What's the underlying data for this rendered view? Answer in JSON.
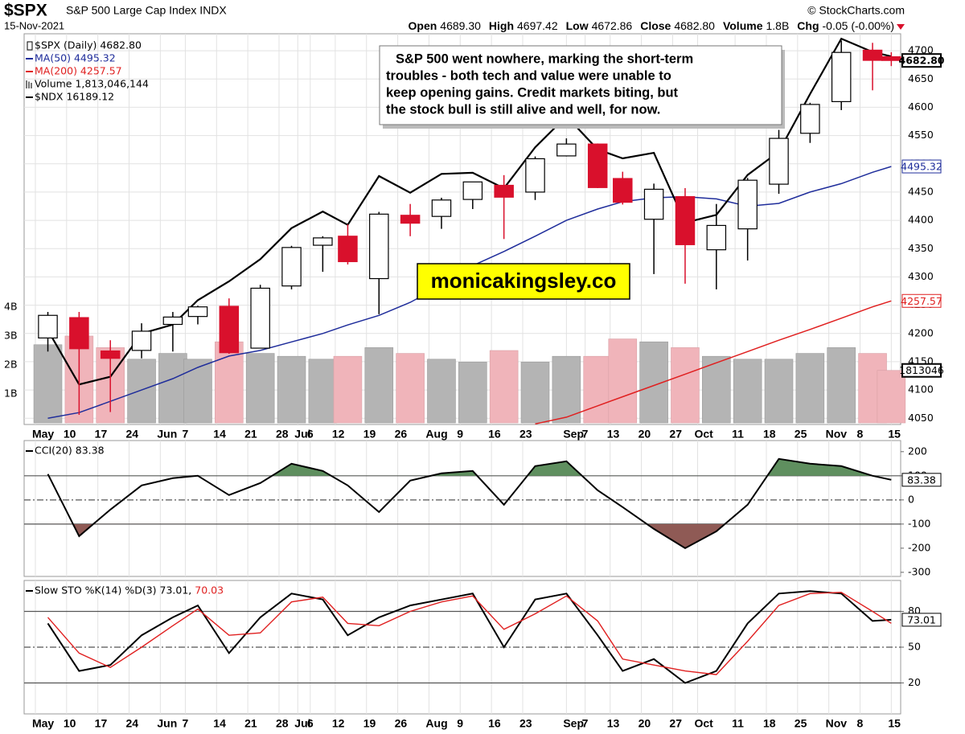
{
  "chart_data": [
    {
      "type": "candlestick",
      "symbol": "$SPX",
      "name": "S&P 500 Large Cap Index INDX",
      "date": "15-Nov-2021",
      "source": "© StockCharts.com",
      "quote": [
        {
          "label": "Open",
          "value": "4689.30"
        },
        {
          "label": "High",
          "value": "4697.42"
        },
        {
          "label": "Low",
          "value": "4672.86"
        },
        {
          "label": "Close",
          "value": "4682.80"
        },
        {
          "label": "Volume",
          "value": "1.8B"
        },
        {
          "label": "Chg",
          "value": "-0.05 (-0.00%)"
        }
      ],
      "annotation": [
        "S&P 500 went nowhere, marking the short-term",
        "troubles - both tech and value were unable to",
        "keep opening gains. Credit markets biting, but",
        "the stock bull is still alive and well, for now."
      ],
      "watermark": "monicakingsley.co",
      "candle_name": "$SPX (Daily) 4682.80",
      "up_color": "#000000",
      "down_color": "#d9102c",
      "x": [
        2,
        7,
        12,
        17,
        22,
        26,
        31,
        36,
        41,
        46,
        50,
        55,
        60,
        65,
        70,
        75,
        80,
        85,
        90,
        94,
        99,
        104,
        109,
        114,
        119,
        124,
        129,
        134,
        137
      ],
      "open": [
        4192,
        4228,
        4169,
        4170,
        4216,
        4230,
        4248,
        4174,
        4284,
        4356,
        4372,
        4297,
        4409,
        4407,
        4437,
        4462,
        4450,
        4514,
        4535,
        4474,
        4402,
        4442,
        4348,
        4385,
        4464,
        4554,
        4610,
        4701,
        4689.3
      ],
      "high": [
        4238,
        4238,
        4188,
        4218,
        4238,
        4249,
        4262,
        4286,
        4355,
        4372,
        4393,
        4415,
        4429,
        4440,
        4468,
        4480,
        4513,
        4545,
        4536,
        4486,
        4465,
        4457,
        4429,
        4475,
        4560,
        4608,
        4718,
        4714,
        4697.42
      ],
      "low": [
        4168,
        4056,
        4061,
        4156,
        4168,
        4216,
        4164,
        4174,
        4278,
        4309,
        4322,
        4234,
        4372,
        4385,
        4420,
        4367,
        4436,
        4513,
        4457,
        4428,
        4305,
        4288,
        4278,
        4329,
        4447,
        4537,
        4595,
        4630,
        4672.86
      ],
      "close": [
        4232,
        4173,
        4156,
        4204,
        4229,
        4247,
        4166,
        4280,
        4352,
        4369,
        4327,
        4411,
        4395,
        4436,
        4468,
        4441,
        4509,
        4535,
        4458,
        4432,
        4455,
        4357,
        4391,
        4471,
        4545,
        4605,
        4697,
        4683,
        4682.8
      ],
      "series": [
        {
          "name": "MA(50) 4495.32",
          "color": "#1f2d9b",
          "values": [
            4050,
            4060,
            4080,
            4100,
            4120,
            4140,
            4160,
            4170,
            4185,
            4200,
            4215,
            4232,
            4255,
            4285,
            4320,
            4345,
            4372,
            4400,
            4420,
            4433,
            4440,
            4442,
            4438,
            4425,
            4430,
            4450,
            4465,
            4485,
            4495.32
          ]
        },
        {
          "name": "MA(200) 4257.57",
          "color": "#e02020",
          "values": [
            null,
            null,
            null,
            null,
            null,
            null,
            null,
            null,
            null,
            null,
            null,
            null,
            null,
            null,
            null,
            null,
            4040,
            4052,
            4072,
            4088,
            4108,
            4128,
            4148,
            4168,
            4188,
            4207,
            4227,
            4247,
            4257.57
          ]
        },
        {
          "name": "Volume 1,813,046,144",
          "type": "bar",
          "axis": "y2",
          "color": "#b4b4b4",
          "down_color": "#f0b4ba",
          "values": [
            2700000000,
            3000000000,
            2600000000,
            2200000000,
            2400000000,
            2200000000,
            2800000000,
            2400000000,
            2300000000,
            2200000000,
            2300000000,
            2600000000,
            2400000000,
            2200000000,
            2100000000,
            2500000000,
            2100000000,
            2300000000,
            2300000000,
            2900000000,
            2800000000,
            2600000000,
            2300000000,
            2200000000,
            2200000000,
            2400000000,
            2600000000,
            2400000000,
            1813046144
          ]
        },
        {
          "name": "$NDX 16189.12",
          "color": "#000000",
          "axis": "y3",
          "values": [
            13720,
            13230,
            13300,
            13690,
            13770,
            13990,
            14160,
            14360,
            14640,
            14790,
            14670,
            15110,
            14960,
            15130,
            15140,
            15000,
            15370,
            15650,
            15350,
            15270,
            15320,
            14690,
            14760,
            15120,
            15330,
            15850,
            16350,
            16230,
            16189.12
          ]
        }
      ],
      "xlim": [
        -1.8,
        138.5
      ],
      "xticks": [
        {
          "value": 0,
          "label": "May"
        },
        {
          "value": 5,
          "label": "10"
        },
        {
          "value": 10,
          "label": "17"
        },
        {
          "value": 15,
          "label": "24"
        },
        {
          "value": 20,
          "label": "Jun"
        },
        {
          "value": 24,
          "label": "7"
        },
        {
          "value": 29,
          "label": "14"
        },
        {
          "value": 34,
          "label": "21"
        },
        {
          "value": 39,
          "label": "28"
        },
        {
          "value": 42,
          "label": "Jul"
        },
        {
          "value": 44,
          "label": "6"
        },
        {
          "value": 48,
          "label": "12"
        },
        {
          "value": 53,
          "label": "19"
        },
        {
          "value": 58,
          "label": "26"
        },
        {
          "value": 63,
          "label": "Aug"
        },
        {
          "value": 68,
          "label": "9"
        },
        {
          "value": 73,
          "label": "16"
        },
        {
          "value": 78,
          "label": "23"
        },
        {
          "value": 85,
          "label": "Sep"
        },
        {
          "value": 88,
          "label": "7"
        },
        {
          "value": 92,
          "label": "13"
        },
        {
          "value": 97,
          "label": "20"
        },
        {
          "value": 102,
          "label": "27"
        },
        {
          "value": 106,
          "label": "Oct"
        },
        {
          "value": 112,
          "label": "11"
        },
        {
          "value": 117,
          "label": "18"
        },
        {
          "value": 122,
          "label": "25"
        },
        {
          "value": 127,
          "label": "Nov"
        },
        {
          "value": 132,
          "label": "8"
        },
        {
          "value": 137,
          "label": "15"
        }
      ],
      "ylim": [
        4039,
        4730
      ],
      "yticks": [
        4050,
        4100,
        4150,
        4200,
        4250,
        4300,
        4350,
        4400,
        4450,
        4500,
        4550,
        4600,
        4650,
        4700
      ],
      "y2lim": [
        -55000000,
        13440000000
      ],
      "y2ticks": [
        {
          "value": 1000000000,
          "label": "1B"
        },
        {
          "value": 2000000000,
          "label": "2B"
        },
        {
          "value": 3000000000,
          "label": "3B"
        },
        {
          "value": 4000000000,
          "label": "4B"
        }
      ],
      "y3lim": [
        12869,
        16394
      ],
      "grid": true,
      "tags": [
        {
          "value": 4682.8,
          "label": "4682.80",
          "color": "#000000"
        },
        {
          "value": 4495.32,
          "label": "4495.32",
          "color": "#1f2d9b"
        },
        {
          "value": 4257.57,
          "label": "4257.57",
          "color": "#e02020"
        }
      ],
      "y2tags": [
        {
          "value": 1813046144,
          "label": "1813046",
          "color": "#000000"
        }
      ]
    },
    {
      "type": "line",
      "x": [
        2,
        7,
        12,
        17,
        22,
        26,
        31,
        36,
        41,
        46,
        50,
        55,
        60,
        65,
        70,
        75,
        80,
        85,
        90,
        94,
        99,
        104,
        109,
        114,
        119,
        124,
        129,
        134,
        137
      ],
      "series": [
        {
          "name": "CCI(20) 83.38",
          "color": "#000000",
          "values": [
            107,
            -150,
            -40,
            60,
            90,
            100,
            20,
            70,
            150,
            120,
            60,
            -50,
            80,
            110,
            120,
            -20,
            140,
            160,
            40,
            -30,
            -120,
            -200,
            -130,
            -20,
            170,
            150,
            140,
            100,
            83.38
          ]
        }
      ],
      "fill_above": {
        "value": 100,
        "color": "#5f8f5f"
      },
      "fill_below": {
        "value": -100,
        "color": "#8f5a55"
      },
      "xlim": [
        -1.8,
        138.5
      ],
      "xticks": [
        0,
        5,
        10,
        15,
        20,
        24,
        29,
        34,
        39,
        42,
        44,
        48,
        53,
        58,
        63,
        68,
        73,
        78,
        85,
        88,
        92,
        97,
        102,
        106,
        112,
        117,
        122,
        127,
        132,
        137
      ],
      "ylim": [
        -317,
        246
      ],
      "yticks": [
        200,
        100,
        0,
        -100,
        -200,
        -300
      ],
      "hlines": [
        {
          "value": 100
        },
        {
          "value": 0,
          "dash": true
        },
        {
          "value": -100
        }
      ],
      "grid": true,
      "tags": [
        {
          "value": 83.38,
          "label": "83.38",
          "color": "#000000"
        }
      ]
    },
    {
      "type": "line",
      "x": [
        2,
        7,
        12,
        17,
        22,
        26,
        31,
        36,
        41,
        46,
        50,
        55,
        60,
        65,
        70,
        75,
        80,
        85,
        90,
        94,
        99,
        104,
        109,
        114,
        119,
        124,
        129,
        134,
        137
      ],
      "series": [
        {
          "name": "Slow STO %K(14) %D(3) 73.01,",
          "color": "#000000",
          "values": [
            70,
            30,
            35,
            60,
            75,
            85,
            45,
            75,
            95,
            90,
            60,
            75,
            85,
            90,
            95,
            50,
            90,
            95,
            60,
            30,
            40,
            20,
            30,
            70,
            95,
            97,
            95,
            72,
            73.01
          ]
        },
        {
          "name": "70.03",
          "color": "#e02020",
          "values": [
            75,
            45,
            33,
            50,
            68,
            82,
            60,
            62,
            88,
            92,
            70,
            68,
            80,
            88,
            93,
            65,
            78,
            93,
            72,
            40,
            35,
            30,
            27,
            55,
            85,
            95,
            96,
            80,
            70.03
          ]
        }
      ],
      "xlim": [
        -1.8,
        138.5
      ],
      "xticks": [
        {
          "value": 0,
          "label": "May"
        },
        {
          "value": 5,
          "label": "10"
        },
        {
          "value": 10,
          "label": "17"
        },
        {
          "value": 15,
          "label": "24"
        },
        {
          "value": 20,
          "label": "Jun"
        },
        {
          "value": 24,
          "label": "7"
        },
        {
          "value": 29,
          "label": "14"
        },
        {
          "value": 34,
          "label": "21"
        },
        {
          "value": 39,
          "label": "28"
        },
        {
          "value": 42,
          "label": "Jul"
        },
        {
          "value": 44,
          "label": "6"
        },
        {
          "value": 48,
          "label": "12"
        },
        {
          "value": 53,
          "label": "19"
        },
        {
          "value": 58,
          "label": "26"
        },
        {
          "value": 63,
          "label": "Aug"
        },
        {
          "value": 68,
          "label": "9"
        },
        {
          "value": 73,
          "label": "16"
        },
        {
          "value": 78,
          "label": "23"
        },
        {
          "value": 85,
          "label": "Sep"
        },
        {
          "value": 88,
          "label": "7"
        },
        {
          "value": 92,
          "label": "13"
        },
        {
          "value": 97,
          "label": "20"
        },
        {
          "value": 102,
          "label": "27"
        },
        {
          "value": 106,
          "label": "Oct"
        },
        {
          "value": 112,
          "label": "11"
        },
        {
          "value": 117,
          "label": "18"
        },
        {
          "value": 122,
          "label": "25"
        },
        {
          "value": 127,
          "label": "Nov"
        },
        {
          "value": 132,
          "label": "8"
        },
        {
          "value": 137,
          "label": "15"
        }
      ],
      "ylim": [
        -6,
        106
      ],
      "yticks": [
        20,
        50,
        80
      ],
      "hlines": [
        {
          "value": 80
        },
        {
          "value": 50,
          "dash": true
        },
        {
          "value": 20
        }
      ],
      "grid": true,
      "tags": [
        {
          "value": 73.01,
          "label": "73.01",
          "color": "#000000"
        }
      ]
    }
  ]
}
